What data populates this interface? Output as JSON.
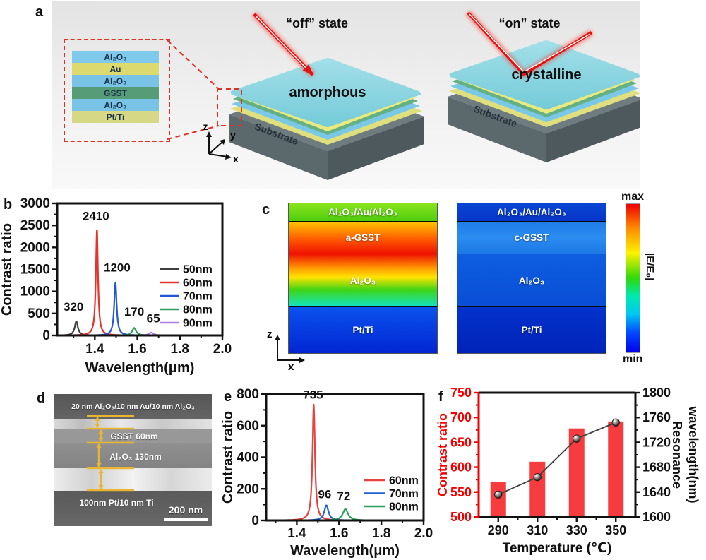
{
  "panels": {
    "a": {
      "label": "a",
      "off_state": "“off” state",
      "on_state": "“on” state",
      "amorphous": "amorphous",
      "crystalline": "crystalline",
      "substrate": "Substrate",
      "axis_x": "x",
      "axis_y": "y",
      "axis_z": "z",
      "inset_layers": [
        {
          "name": "Al₂O₃",
          "color": "#7fc9ea"
        },
        {
          "name": "Au",
          "color": "#dcd96f"
        },
        {
          "name": "Al₂O₃",
          "color": "#79c3e7"
        },
        {
          "name": "GSST",
          "color": "#569c77"
        },
        {
          "name": "Al₂O₃",
          "color": "#79c3e7"
        },
        {
          "name": "Pt/Ti",
          "color": "#d6d885"
        }
      ]
    },
    "b": {
      "label": "b"
    },
    "c": {
      "label": "c",
      "left_map": {
        "layers": [
          "Al₂O₃/Au/Al₂O₃",
          "a-GSST",
          "Al₂O₃",
          "Pt/Ti"
        ]
      },
      "right_map": {
        "layers": [
          "Al₂O₃/Au/Al₂O₃",
          "c-GSST",
          "Al₂O₃",
          "Pt/Ti"
        ]
      },
      "colorbar": {
        "max": "max",
        "min": "min",
        "label": "|E/E₀|"
      },
      "axis_x": "x",
      "axis_z": "z"
    },
    "d": {
      "label": "d",
      "annotation_trilayer": "20 nm Al₂O₃/10 nm Au/10 nm Al₂O₃",
      "annotation_gsst": "GSST 60nm",
      "annotation_al2o3": "Al₂O₃ 130nm",
      "annotation_ptti": "100nm Pt/10 nm Ti",
      "scale_bar": "200 nm"
    },
    "e": {
      "label": "e"
    },
    "f": {
      "label": "f"
    }
  },
  "chart_data": [
    {
      "id": "b",
      "type": "line",
      "xlabel": "Wavelength(μm)",
      "ylabel": "Contrast ratio",
      "xlim": [
        1.223,
        2.0
      ],
      "ylim": [
        0,
        3000
      ],
      "x_ticks": [
        1.4,
        1.6,
        1.8,
        2.0
      ],
      "x_minor_ticks": [
        1.3,
        1.5,
        1.7,
        1.9
      ],
      "y_ticks": [
        0,
        500,
        1000,
        1500,
        2000,
        2500,
        3000
      ],
      "series": [
        {
          "name": "50nm",
          "color": "#3f3f3f",
          "peak_x": 1.313,
          "peak_height": 320,
          "peak_width": 0.009
        },
        {
          "name": "60nm",
          "color": "#e8332d",
          "peak_x": 1.41,
          "peak_height": 2410,
          "peak_width": 0.006
        },
        {
          "name": "70nm",
          "color": "#2257d8",
          "peak_x": 1.497,
          "peak_height": 1200,
          "peak_width": 0.007
        },
        {
          "name": "80nm",
          "color": "#2d9e5f",
          "peak_x": 1.585,
          "peak_height": 170,
          "peak_width": 0.011
        },
        {
          "name": "90nm",
          "color": "#ab7fe2",
          "peak_x": 1.665,
          "peak_height": 65,
          "peak_width": 0.013
        }
      ],
      "annotations": [
        {
          "text": "320",
          "x": 1.3,
          "y": 560
        },
        {
          "text": "2410",
          "x": 1.405,
          "y": 2620
        },
        {
          "text": "1200",
          "x": 1.505,
          "y": 1450
        },
        {
          "text": "170",
          "x": 1.585,
          "y": 450
        },
        {
          "text": "65",
          "x": 1.675,
          "y": 300
        }
      ]
    },
    {
      "id": "e",
      "type": "line",
      "xlabel": "Wavelength(μm)",
      "ylabel": "Contrast ratio",
      "xlim": [
        1.255,
        2.0
      ],
      "ylim": [
        0,
        800
      ],
      "x_ticks": [
        1.4,
        1.6,
        1.8,
        2.0
      ],
      "x_minor_ticks": [
        1.3,
        1.5,
        1.7,
        1.9
      ],
      "y_ticks": [
        0,
        200,
        400,
        600,
        800
      ],
      "series": [
        {
          "name": "60nm",
          "color": "#e8423c",
          "peak_x": 1.48,
          "peak_height": 735,
          "peak_width": 0.007
        },
        {
          "name": "70nm",
          "color": "#1f62d4",
          "peak_x": 1.54,
          "peak_height": 96,
          "peak_width": 0.012
        },
        {
          "name": "80nm",
          "color": "#2aa05a",
          "peak_x": 1.63,
          "peak_height": 72,
          "peak_width": 0.015
        }
      ],
      "annotations": [
        {
          "text": "735",
          "x": 1.477,
          "y": 772
        },
        {
          "text": "96",
          "x": 1.532,
          "y": 140
        },
        {
          "text": "72",
          "x": 1.622,
          "y": 130
        }
      ]
    },
    {
      "id": "f",
      "type": "bar-line",
      "xlabel": "Temperature (℃)",
      "ylabel_left": "Contrast ratio",
      "ylabel_right_lines": [
        "Resonance",
        "wavelength(nm)"
      ],
      "categories": [
        "290",
        "310",
        "330",
        "350"
      ],
      "bar_series": {
        "name": "Contrast ratio",
        "color": "#f63c3e",
        "values": [
          570,
          611,
          678,
          692
        ]
      },
      "line_series": {
        "name": "Resonance wavelength",
        "color": "#3d3d3d",
        "values": [
          1636,
          1664,
          1726,
          1752
        ]
      },
      "ylim_left": [
        500,
        750
      ],
      "y_ticks_left": [
        500,
        550,
        600,
        650,
        700,
        750
      ],
      "ylim_right": [
        1600,
        1800
      ],
      "y_ticks_right": [
        1600,
        1640,
        1680,
        1720,
        1760,
        1800
      ],
      "left_axis_color": "#f50000"
    }
  ]
}
